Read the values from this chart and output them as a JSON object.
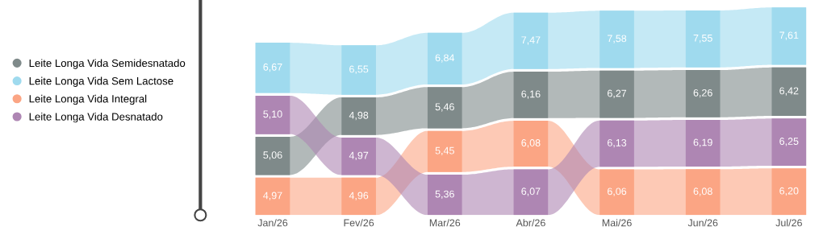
{
  "chart_data": {
    "type": "other",
    "legend": "left",
    "categories": [
      "Jan/26",
      "Fev/26",
      "Mar/26",
      "Abr/26",
      "Mai/26",
      "Jun/26",
      "Jul/26"
    ],
    "series": [
      {
        "name": "Leite Longa Vida Semidesnatado",
        "color": "#7f8a8a",
        "values": [
          5.06,
          4.98,
          5.46,
          6.16,
          6.27,
          6.26,
          6.42
        ],
        "value_labels": [
          "5,06",
          "4,98",
          "5,46",
          "6,16",
          "6,27",
          "6,26",
          "6,42"
        ]
      },
      {
        "name": "Leite Longa Vida Sem Lactose",
        "color": "#9fdaee",
        "values": [
          6.67,
          6.55,
          6.84,
          7.47,
          7.58,
          7.55,
          7.61
        ],
        "value_labels": [
          "6,67",
          "6,55",
          "6,84",
          "7,47",
          "7,58",
          "7,55",
          "7,61"
        ]
      },
      {
        "name": "Leite Longa Vida Integral",
        "color": "#fba584",
        "values": [
          4.97,
          4.96,
          5.45,
          6.08,
          6.06,
          6.08,
          6.2
        ],
        "value_labels": [
          "4,97",
          "4,96",
          "5,45",
          "6,08",
          "6,06",
          "6,08",
          "6,20"
        ]
      },
      {
        "name": "Leite Longa Vida Desnatado",
        "color": "#ae86b3",
        "values": [
          5.1,
          4.97,
          5.36,
          6.07,
          6.13,
          6.19,
          6.25
        ],
        "value_labels": [
          "5,10",
          "4,97",
          "5,36",
          "6,07",
          "6,13",
          "6,19",
          "6,25"
        ]
      }
    ]
  }
}
